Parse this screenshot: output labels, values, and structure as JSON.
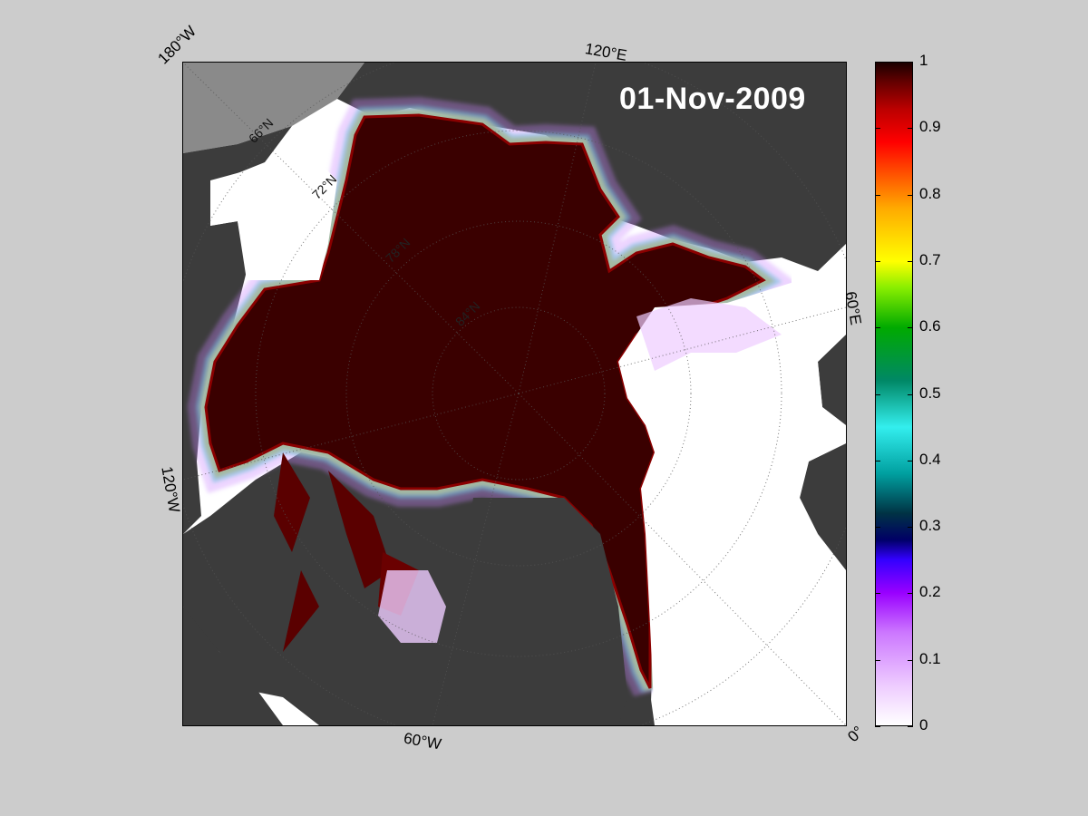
{
  "map": {
    "date": "01-Nov-2009",
    "projection": "polar stereographic (north)",
    "variable": "sea ice concentration",
    "longitude_labels": {
      "lon_180W": "180°W",
      "lon_120E": "120°E",
      "lon_60E": "60°E",
      "lon_120W": "120°W",
      "lon_60W": "60°W",
      "lon_0": "0°"
    },
    "latitude_labels": {
      "lat_66": "66°N",
      "lat_72": "72°N",
      "lat_78": "78°N",
      "lat_84": "84°N"
    }
  },
  "colorbar": {
    "min": 0,
    "max": 1,
    "ticks": [
      "1",
      "0.9",
      "0.8",
      "0.7",
      "0.6",
      "0.5",
      "0.4",
      "0.3",
      "0.2",
      "0.1",
      "0"
    ],
    "colors": {
      "0": "#ffffff",
      "0.1": "#cc77ff",
      "0.2": "#9900ff",
      "0.3": "#000066",
      "0.4": "#33eeee",
      "0.5": "#008866",
      "0.6": "#00aa00",
      "0.7": "#ffff00",
      "0.8": "#ffaa00",
      "0.9": "#ff0000",
      "1": "#1a0000"
    }
  },
  "colors": {
    "land": "#3c3c3c",
    "land_other_hemisphere": "#8a8a8a",
    "open_water": "#ffffff",
    "pack_ice": "#3a0000",
    "background": "#cccccc"
  }
}
